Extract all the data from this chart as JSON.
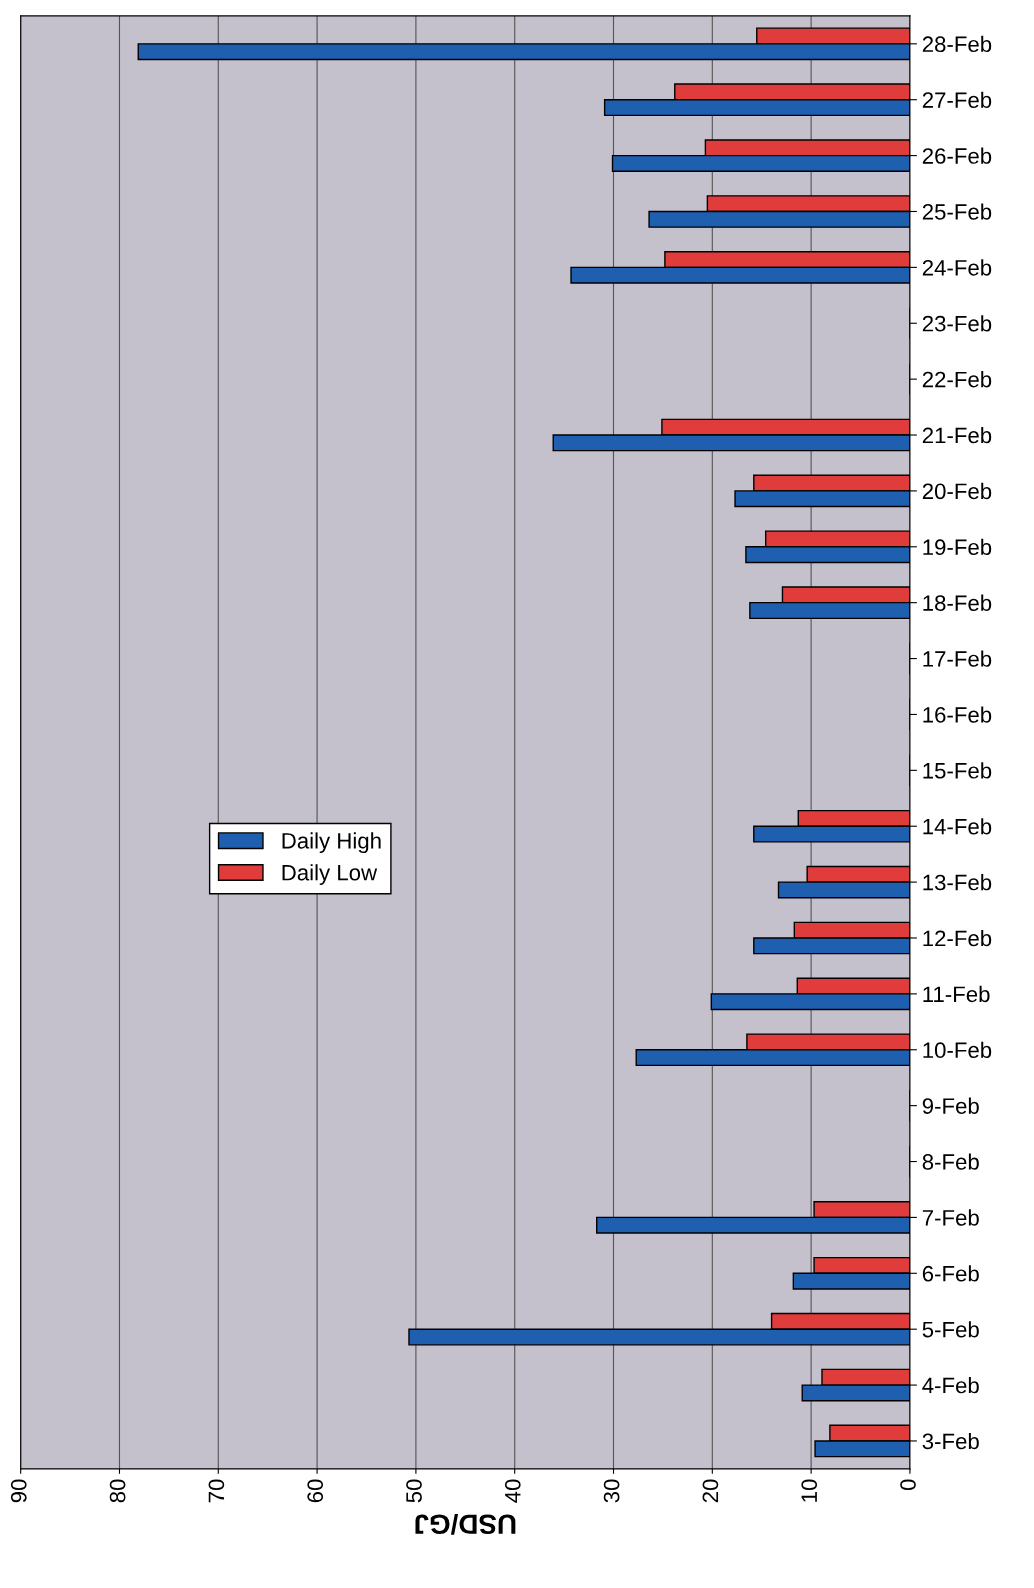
{
  "chart_data": {
    "type": "bar",
    "orientation": "horizontal",
    "xlabel": "USD/GJ",
    "categories": [
      "28-Feb",
      "27-Feb",
      "26-Feb",
      "25-Feb",
      "24-Feb",
      "23-Feb",
      "22-Feb",
      "21-Feb",
      "20-Feb",
      "19-Feb",
      "18-Feb",
      "17-Feb",
      "16-Feb",
      "15-Feb",
      "14-Feb",
      "13-Feb",
      "12-Feb",
      "11-Feb",
      "10-Feb",
      "9-Feb",
      "8-Feb",
      "7-Feb",
      "6-Feb",
      "5-Feb",
      "4-Feb",
      "3-Feb"
    ],
    "series": [
      {
        "name": "Daily Low",
        "color": "#e03c3c",
        "values": [
          15.5,
          23.8,
          20.7,
          20.5,
          24.8,
          null,
          null,
          25.1,
          15.8,
          14.6,
          12.9,
          null,
          null,
          null,
          11.3,
          10.4,
          11.7,
          11.4,
          16.5,
          null,
          null,
          9.7,
          9.7,
          14.0,
          8.9,
          8.1
        ]
      },
      {
        "name": "Daily High",
        "color": "#1f5fb0",
        "values": [
          78.1,
          30.9,
          30.1,
          26.4,
          34.3,
          null,
          null,
          36.1,
          17.7,
          16.6,
          16.2,
          null,
          null,
          null,
          15.8,
          13.3,
          15.8,
          20.1,
          27.7,
          null,
          null,
          31.7,
          11.8,
          50.7,
          10.9,
          9.6
        ]
      }
    ],
    "xlim": [
      90,
      0
    ],
    "xticks": [
      90,
      80,
      70,
      60,
      50,
      40,
      30,
      20,
      10,
      0
    ],
    "grid": "x",
    "legend": "center left"
  }
}
